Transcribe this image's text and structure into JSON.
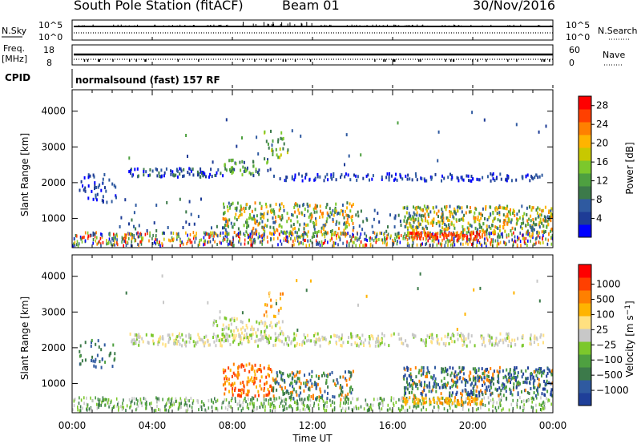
{
  "header": {
    "station": "South Pole Station (fitACF)",
    "beam": "Beam 01",
    "date": "30/Nov/2016"
  },
  "aux_panels": {
    "nsky": {
      "left_label": "N.Sky",
      "right_label": "N.Search",
      "left_ticks": [
        "10^5",
        "10^0"
      ],
      "right_ticks": [
        "10^5",
        "10^0"
      ]
    },
    "freq": {
      "left_label_line1": "Freq.",
      "left_label_line2": "[MHz]",
      "right_label": "Nave",
      "left_ticks": [
        "18",
        "8"
      ],
      "right_ticks": [
        "60",
        "0"
      ]
    },
    "cpid": {
      "label": "CPID",
      "value": "normalsound (fast) 157 RF"
    }
  },
  "chart_data": [
    {
      "type": "heatmap",
      "name": "power",
      "ylabel": "Slant Range [km]",
      "xlabel": "Time UT",
      "xlim": [
        0,
        24
      ],
      "ylim": [
        180,
        4600
      ],
      "xticks": [
        "00:00",
        "04:00",
        "08:00",
        "12:00",
        "16:00",
        "20:00",
        "00:00"
      ],
      "yticks": [
        1000,
        2000,
        3000,
        4000
      ],
      "colorbar": {
        "label": "Power [dB]",
        "ticks": [
          4,
          8,
          12,
          16,
          20,
          24,
          28
        ],
        "range": [
          0,
          30
        ],
        "colors": [
          "#0000ff",
          "#1e3c96",
          "#2f5aa0",
          "#3c7a4a",
          "#4ea040",
          "#7cc82c",
          "#c8c800",
          "#ffb400",
          "#ff8000",
          "#ff4000",
          "#ff0000"
        ]
      },
      "features": [
        {
          "desc": "E-region band",
          "time": [
            0,
            24
          ],
          "range": [
            300,
            550
          ],
          "level": "mixed"
        },
        {
          "desc": "F-region band",
          "time": [
            2.5,
            23.5
          ],
          "range": [
            2000,
            2400
          ],
          "level": 8
        },
        {
          "desc": "Ionospheric echoes",
          "time": [
            7.5,
            24
          ],
          "range": [
            600,
            1300
          ],
          "level": 14
        },
        {
          "desc": "Strong echoes",
          "time": [
            16.5,
            20.5
          ],
          "range": [
            350,
            550
          ],
          "level": 26
        }
      ]
    },
    {
      "type": "heatmap",
      "name": "velocity",
      "ylabel": "Slant Range [km]",
      "xlabel": "Time UT",
      "xlim": [
        0,
        24
      ],
      "ylim": [
        180,
        4600
      ],
      "xticks": [
        "00:00",
        "04:00",
        "08:00",
        "12:00",
        "16:00",
        "20:00",
        "00:00"
      ],
      "yticks": [
        1000,
        2000,
        3000,
        4000
      ],
      "colorbar": {
        "label": "Velocity [m s^-1]",
        "ticks": [
          "1000",
          "500",
          "100",
          "25",
          "−25",
          "−100",
          "−500",
          "−1000"
        ],
        "colors": [
          "#1f3f99",
          "#2f5aa0",
          "#3c7a4a",
          "#4ea040",
          "#7cc82c",
          "#c8c8c8",
          "#ffe080",
          "#ffb400",
          "#ff8000",
          "#ff4000",
          "#ff0000"
        ]
      }
    }
  ]
}
